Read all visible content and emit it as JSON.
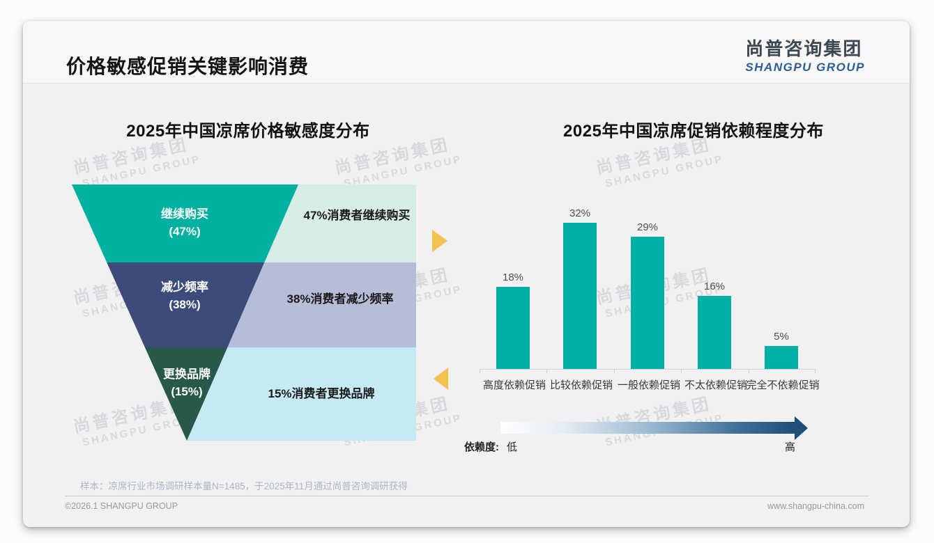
{
  "slide": {
    "title": "价格敏感促销关键影响消费",
    "sample_note": "样本：凉席行业市场调研样本量N=1485，于2025年11月通过尚普咨询调研获得",
    "footer_left": "©2026.1 SHANGPU GROUP",
    "footer_right": "www.shangpu-china.com"
  },
  "logo": {
    "cn": "尚普咨询集团",
    "en": "SHANGPU GROUP"
  },
  "watermark": {
    "cn": "尚普咨询集团",
    "en": "SHANGPU GROUP"
  },
  "scale_legend": {
    "label": "依赖度:",
    "low": "低",
    "high": "高"
  },
  "accent_colors": {
    "amber_arrow": "#F2C14E",
    "gradient_navy": "#1F4E79",
    "teal": "#00B0A4"
  },
  "chart_data": [
    {
      "type": "funnel",
      "title": "2025年中国凉席价格敏感度分布",
      "stages": [
        {
          "label": "继续购买",
          "value": 47,
          "value_label": "(47%)",
          "annotation": "47%消费者继续购买",
          "color": "#00B1A1",
          "annotation_bg": "#D8ECE6"
        },
        {
          "label": "减少频率",
          "value": 38,
          "value_label": "(38%)",
          "annotation": "38%消费者减少频率",
          "color": "#3D4B7B",
          "annotation_bg": "#B5BDD7"
        },
        {
          "label": "更换品牌",
          "value": 15,
          "value_label": "(15%)",
          "annotation": "15%消费者更换品牌",
          "color": "#27584A",
          "annotation_bg": "#C6EAF3"
        }
      ]
    },
    {
      "type": "bar",
      "title": "2025年中国凉席促销依赖程度分布",
      "categories": [
        "高度依赖促销",
        "比较依赖促销",
        "一般依赖促销",
        "不太依赖促销",
        "完全不依赖促销"
      ],
      "values": [
        18,
        32,
        29,
        16,
        5
      ],
      "value_labels": [
        "18%",
        "32%",
        "29%",
        "16%",
        "5%"
      ],
      "bar_color": "#00B0A6",
      "ylim": [
        0,
        35
      ],
      "grid": false,
      "legend": "none"
    }
  ]
}
